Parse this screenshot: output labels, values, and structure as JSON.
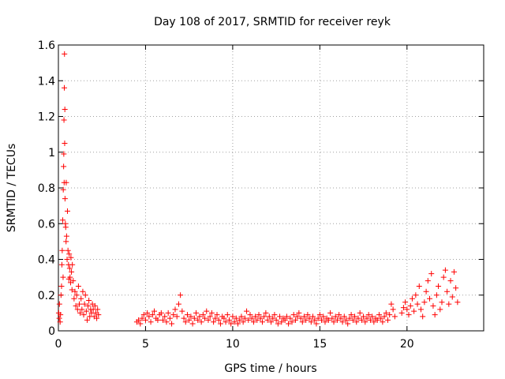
{
  "chart_data": {
    "type": "scatter",
    "title": "Day 108 of 2017, SRMTID for receiver reyk",
    "xlabel": "GPS time / hours",
    "ylabel": "SRMTID / TECUs",
    "xlim": [
      0,
      24.4
    ],
    "ylim": [
      0,
      1.6
    ],
    "x_ticks": [
      0,
      5,
      10,
      15,
      20
    ],
    "x_tick_labels": [
      "0",
      "5",
      "10",
      "15",
      "20"
    ],
    "y_ticks": [
      0,
      0.2,
      0.4,
      0.6,
      0.8,
      1.0,
      1.2,
      1.4,
      1.6
    ],
    "y_tick_labels": [
      "0",
      "0.2",
      "0.4",
      "0.6",
      "0.8",
      "1",
      "1.2",
      "1.4",
      "1.6"
    ],
    "grid": true,
    "marker": "+",
    "color": "#ff0000",
    "series": [
      {
        "name": "SRMTID",
        "points": [
          [
            0.02,
            0.1
          ],
          [
            0.05,
            0.07
          ],
          [
            0.06,
            0.15
          ],
          [
            0.1,
            0.05
          ],
          [
            0.12,
            0.09
          ],
          [
            0.15,
            0.2
          ],
          [
            0.18,
            0.25
          ],
          [
            0.2,
            0.37
          ],
          [
            0.22,
            0.45
          ],
          [
            0.25,
            0.62
          ],
          [
            0.27,
            0.3
          ],
          [
            0.28,
            0.79
          ],
          [
            0.3,
            0.92
          ],
          [
            0.31,
            0.99
          ],
          [
            0.32,
            1.18
          ],
          [
            0.33,
            0.83
          ],
          [
            0.34,
            1.36
          ],
          [
            0.35,
            1.55
          ],
          [
            0.36,
            1.05
          ],
          [
            0.37,
            1.24
          ],
          [
            0.38,
            0.74
          ],
          [
            0.4,
            0.6
          ],
          [
            0.42,
            0.58
          ],
          [
            0.44,
            0.5
          ],
          [
            0.45,
            0.83
          ],
          [
            0.47,
            0.53
          ],
          [
            0.5,
            0.4
          ],
          [
            0.52,
            0.67
          ],
          [
            0.55,
            0.45
          ],
          [
            0.58,
            0.37
          ],
          [
            0.6,
            0.29
          ],
          [
            0.62,
            0.43
          ],
          [
            0.65,
            0.35
          ],
          [
            0.67,
            0.3
          ],
          [
            0.7,
            0.27
          ],
          [
            0.72,
            0.41
          ],
          [
            0.75,
            0.33
          ],
          [
            0.78,
            0.23
          ],
          [
            0.8,
            0.37
          ],
          [
            0.85,
            0.28
          ],
          [
            0.9,
            0.18
          ],
          [
            0.95,
            0.22
          ],
          [
            1.0,
            0.14
          ],
          [
            1.05,
            0.2
          ],
          [
            1.1,
            0.12
          ],
          [
            1.15,
            0.25
          ],
          [
            1.2,
            0.15
          ],
          [
            1.25,
            0.1
          ],
          [
            1.3,
            0.18
          ],
          [
            1.35,
            0.12
          ],
          [
            1.4,
            0.22
          ],
          [
            1.45,
            0.09
          ],
          [
            1.5,
            0.15
          ],
          [
            1.55,
            0.2
          ],
          [
            1.6,
            0.11
          ],
          [
            1.65,
            0.06
          ],
          [
            1.7,
            0.14
          ],
          [
            1.75,
            0.17
          ],
          [
            1.8,
            0.08
          ],
          [
            1.85,
            0.12
          ],
          [
            1.9,
            0.1
          ],
          [
            1.95,
            0.15
          ],
          [
            2.0,
            0.12
          ],
          [
            2.05,
            0.08
          ],
          [
            2.1,
            0.14
          ],
          [
            2.15,
            0.1
          ],
          [
            2.2,
            0.07
          ],
          [
            2.25,
            0.12
          ],
          [
            2.3,
            0.09
          ],
          [
            4.5,
            0.05
          ],
          [
            4.6,
            0.06
          ],
          [
            4.7,
            0.04
          ],
          [
            4.8,
            0.07
          ],
          [
            4.9,
            0.09
          ],
          [
            5.0,
            0.06
          ],
          [
            5.1,
            0.1
          ],
          [
            5.2,
            0.08
          ],
          [
            5.3,
            0.05
          ],
          [
            5.4,
            0.09
          ],
          [
            5.5,
            0.11
          ],
          [
            5.6,
            0.07
          ],
          [
            5.7,
            0.06
          ],
          [
            5.8,
            0.09
          ],
          [
            5.9,
            0.1
          ],
          [
            6.0,
            0.06
          ],
          [
            6.1,
            0.08
          ],
          [
            6.2,
            0.05
          ],
          [
            6.3,
            0.1
          ],
          [
            6.4,
            0.07
          ],
          [
            6.5,
            0.04
          ],
          [
            6.6,
            0.09
          ],
          [
            6.7,
            0.12
          ],
          [
            6.8,
            0.08
          ],
          [
            6.9,
            0.15
          ],
          [
            7.0,
            0.2
          ],
          [
            7.1,
            0.11
          ],
          [
            7.2,
            0.07
          ],
          [
            7.3,
            0.05
          ],
          [
            7.4,
            0.09
          ],
          [
            7.5,
            0.06
          ],
          [
            7.6,
            0.08
          ],
          [
            7.7,
            0.04
          ],
          [
            7.8,
            0.07
          ],
          [
            7.9,
            0.1
          ],
          [
            8.0,
            0.06
          ],
          [
            8.1,
            0.08
          ],
          [
            8.2,
            0.05
          ],
          [
            8.3,
            0.09
          ],
          [
            8.4,
            0.07
          ],
          [
            8.5,
            0.11
          ],
          [
            8.6,
            0.06
          ],
          [
            8.7,
            0.08
          ],
          [
            8.8,
            0.1
          ],
          [
            8.9,
            0.05
          ],
          [
            9.0,
            0.07
          ],
          [
            9.1,
            0.09
          ],
          [
            9.2,
            0.06
          ],
          [
            9.3,
            0.04
          ],
          [
            9.4,
            0.08
          ],
          [
            9.5,
            0.07
          ],
          [
            9.6,
            0.05
          ],
          [
            9.7,
            0.09
          ],
          [
            9.8,
            0.06
          ],
          [
            9.9,
            0.04
          ],
          [
            10.0,
            0.08
          ],
          [
            10.1,
            0.05
          ],
          [
            10.2,
            0.07
          ],
          [
            10.3,
            0.04
          ],
          [
            10.4,
            0.06
          ],
          [
            10.5,
            0.08
          ],
          [
            10.6,
            0.05
          ],
          [
            10.7,
            0.07
          ],
          [
            10.8,
            0.11
          ],
          [
            10.9,
            0.06
          ],
          [
            11.0,
            0.09
          ],
          [
            11.1,
            0.07
          ],
          [
            11.2,
            0.05
          ],
          [
            11.3,
            0.08
          ],
          [
            11.4,
            0.06
          ],
          [
            11.5,
            0.09
          ],
          [
            11.6,
            0.07
          ],
          [
            11.7,
            0.05
          ],
          [
            11.8,
            0.08
          ],
          [
            11.9,
            0.1
          ],
          [
            12.0,
            0.06
          ],
          [
            12.1,
            0.08
          ],
          [
            12.2,
            0.05
          ],
          [
            12.3,
            0.07
          ],
          [
            12.4,
            0.09
          ],
          [
            12.5,
            0.06
          ],
          [
            12.6,
            0.04
          ],
          [
            12.7,
            0.08
          ],
          [
            12.8,
            0.05
          ],
          [
            12.9,
            0.07
          ],
          [
            13.0,
            0.06
          ],
          [
            13.1,
            0.08
          ],
          [
            13.2,
            0.04
          ],
          [
            13.3,
            0.07
          ],
          [
            13.4,
            0.05
          ],
          [
            13.5,
            0.09
          ],
          [
            13.6,
            0.06
          ],
          [
            13.7,
            0.08
          ],
          [
            13.8,
            0.1
          ],
          [
            13.9,
            0.07
          ],
          [
            14.0,
            0.05
          ],
          [
            14.1,
            0.08
          ],
          [
            14.2,
            0.06
          ],
          [
            14.3,
            0.09
          ],
          [
            14.4,
            0.07
          ],
          [
            14.5,
            0.05
          ],
          [
            14.6,
            0.08
          ],
          [
            14.7,
            0.06
          ],
          [
            14.8,
            0.04
          ],
          [
            14.9,
            0.07
          ],
          [
            15.0,
            0.09
          ],
          [
            15.1,
            0.06
          ],
          [
            15.2,
            0.08
          ],
          [
            15.3,
            0.05
          ],
          [
            15.4,
            0.07
          ],
          [
            15.5,
            0.06
          ],
          [
            15.6,
            0.1
          ],
          [
            15.7,
            0.07
          ],
          [
            15.8,
            0.05
          ],
          [
            15.9,
            0.08
          ],
          [
            16.0,
            0.06
          ],
          [
            16.1,
            0.09
          ],
          [
            16.2,
            0.07
          ],
          [
            16.3,
            0.05
          ],
          [
            16.4,
            0.08
          ],
          [
            16.5,
            0.06
          ],
          [
            16.6,
            0.04
          ],
          [
            16.7,
            0.07
          ],
          [
            16.8,
            0.09
          ],
          [
            16.9,
            0.06
          ],
          [
            17.0,
            0.08
          ],
          [
            17.1,
            0.05
          ],
          [
            17.2,
            0.07
          ],
          [
            17.3,
            0.1
          ],
          [
            17.4,
            0.06
          ],
          [
            17.5,
            0.08
          ],
          [
            17.6,
            0.05
          ],
          [
            17.7,
            0.07
          ],
          [
            17.8,
            0.09
          ],
          [
            17.9,
            0.06
          ],
          [
            18.0,
            0.08
          ],
          [
            18.1,
            0.05
          ],
          [
            18.2,
            0.07
          ],
          [
            18.3,
            0.06
          ],
          [
            18.4,
            0.09
          ],
          [
            18.5,
            0.07
          ],
          [
            18.6,
            0.05
          ],
          [
            18.7,
            0.08
          ],
          [
            18.8,
            0.1
          ],
          [
            18.9,
            0.06
          ],
          [
            19.0,
            0.09
          ],
          [
            19.1,
            0.15
          ],
          [
            19.2,
            0.12
          ],
          [
            19.3,
            0.08
          ],
          [
            19.7,
            0.1
          ],
          [
            19.8,
            0.13
          ],
          [
            19.9,
            0.16
          ],
          [
            20.0,
            0.12
          ],
          [
            20.1,
            0.09
          ],
          [
            20.2,
            0.14
          ],
          [
            20.3,
            0.18
          ],
          [
            20.4,
            0.11
          ],
          [
            20.5,
            0.2
          ],
          [
            20.6,
            0.15
          ],
          [
            20.7,
            0.25
          ],
          [
            20.8,
            0.12
          ],
          [
            20.9,
            0.08
          ],
          [
            21.0,
            0.16
          ],
          [
            21.1,
            0.22
          ],
          [
            21.2,
            0.28
          ],
          [
            21.3,
            0.18
          ],
          [
            21.4,
            0.32
          ],
          [
            21.5,
            0.14
          ],
          [
            21.6,
            0.09
          ],
          [
            21.7,
            0.2
          ],
          [
            21.8,
            0.25
          ],
          [
            21.9,
            0.12
          ],
          [
            22.0,
            0.16
          ],
          [
            22.1,
            0.3
          ],
          [
            22.2,
            0.34
          ],
          [
            22.3,
            0.22
          ],
          [
            22.4,
            0.15
          ],
          [
            22.5,
            0.28
          ],
          [
            22.6,
            0.19
          ],
          [
            22.7,
            0.33
          ],
          [
            22.8,
            0.24
          ],
          [
            22.9,
            0.16
          ]
        ]
      }
    ]
  }
}
